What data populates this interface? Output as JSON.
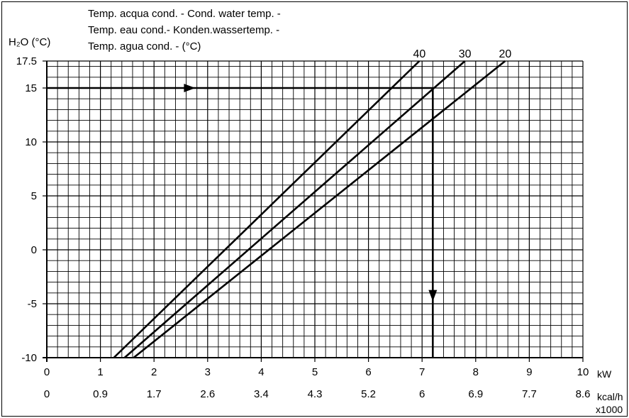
{
  "chart_data": {
    "type": "line",
    "title_lines": [
      "Temp. acqua cond. - Cond. water temp. -",
      "Temp. eau cond.- Konden.wassertemp. -",
      "Temp. agua cond. - (°C)"
    ],
    "ylabel": "H₂O (°C)",
    "xlabel_primary": "kW",
    "xlabel_secondary": "kcal/h",
    "xlabel_secondary_multiplier": "x1000",
    "xlim": [
      0,
      10
    ],
    "ylim": [
      -10,
      17.5
    ],
    "y_ticks": [
      {
        "value": 17.5,
        "label": "17.5"
      },
      {
        "value": 15,
        "label": "15"
      },
      {
        "value": 10,
        "label": "10"
      },
      {
        "value": 5,
        "label": "5"
      },
      {
        "value": 0,
        "label": "0"
      },
      {
        "value": -5,
        "label": "-5"
      },
      {
        "value": -10,
        "label": "-10"
      }
    ],
    "x_ticks": [
      {
        "value": 0,
        "label": "0"
      },
      {
        "value": 1,
        "label": "1"
      },
      {
        "value": 2,
        "label": "2"
      },
      {
        "value": 3,
        "label": "3"
      },
      {
        "value": 4,
        "label": "4"
      },
      {
        "value": 5,
        "label": "5"
      },
      {
        "value": 6,
        "label": "6"
      },
      {
        "value": 7,
        "label": "7"
      },
      {
        "value": 8,
        "label": "8"
      },
      {
        "value": 9,
        "label": "9"
      },
      {
        "value": 10,
        "label": "10"
      }
    ],
    "x_ticks_secondary": [
      {
        "value": 0,
        "label": "0"
      },
      {
        "value": 1,
        "label": "0.9"
      },
      {
        "value": 2,
        "label": "1.7"
      },
      {
        "value": 3,
        "label": "2.6"
      },
      {
        "value": 4,
        "label": "3.4"
      },
      {
        "value": 5,
        "label": "4.3"
      },
      {
        "value": 6,
        "label": "5.2"
      },
      {
        "value": 7,
        "label": "6"
      },
      {
        "value": 8,
        "label": "6.9"
      },
      {
        "value": 9,
        "label": "7.7"
      },
      {
        "value": 10,
        "label": "8.6"
      }
    ],
    "grid": true,
    "series": [
      {
        "name": "40",
        "x": [
          1.25,
          6.95
        ],
        "y": [
          -10,
          17.5
        ]
      },
      {
        "name": "30",
        "x": [
          1.45,
          7.8
        ],
        "y": [
          -10,
          17.5
        ]
      },
      {
        "name": "20",
        "x": [
          1.62,
          8.55
        ],
        "y": [
          -10,
          17.5
        ]
      }
    ],
    "example_path": {
      "x": [
        0,
        7.2,
        7.2
      ],
      "y": [
        15,
        15,
        -10
      ]
    }
  }
}
